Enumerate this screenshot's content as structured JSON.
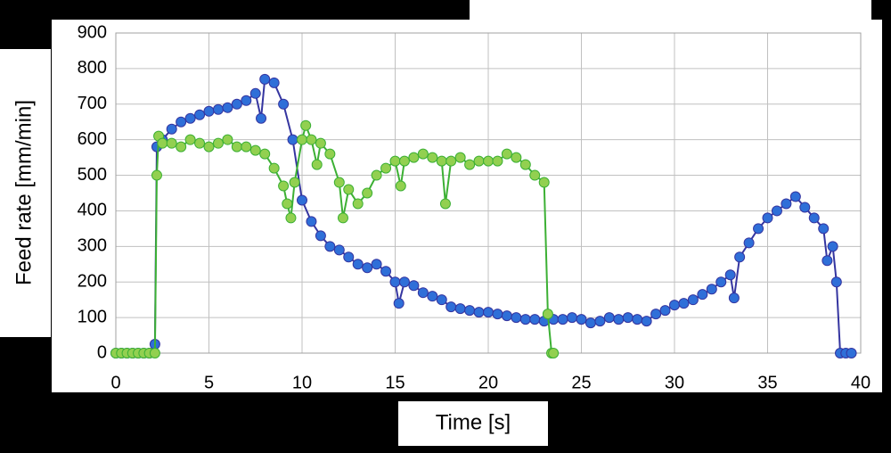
{
  "chart_data": {
    "type": "line",
    "xlabel": "Time [s]",
    "ylabel": "Feed rate [mm/min]",
    "xlim": [
      0,
      40
    ],
    "xticks": [
      0,
      5,
      10,
      15,
      20,
      25,
      30,
      35,
      40
    ],
    "ylim": [
      0,
      900
    ],
    "yticks": [
      0,
      100,
      200,
      300,
      400,
      500,
      600,
      700,
      800,
      900
    ],
    "grid": true,
    "series": [
      {
        "color": "#2f6fd8",
        "line_color": "#3535a0",
        "x": [
          0,
          0.3,
          0.6,
          0.9,
          1.2,
          1.5,
          1.8,
          2.1,
          2.2,
          2.5,
          3,
          3.5,
          4,
          4.5,
          5,
          5.5,
          6,
          6.5,
          7,
          7.5,
          7.8,
          8,
          8.5,
          9,
          9.5,
          10,
          10.5,
          11,
          11.5,
          12,
          12.5,
          13,
          13.5,
          14,
          14.5,
          15,
          15.2,
          15.5,
          16,
          16.5,
          17,
          17.5,
          18,
          18.5,
          19,
          19.5,
          20,
          20.5,
          21,
          21.5,
          22,
          22.5,
          23,
          23.5,
          24,
          24.5,
          25,
          25.5,
          26,
          26.5,
          27,
          27.5,
          28,
          28.5,
          29,
          29.5,
          30,
          30.5,
          31,
          31.5,
          32,
          32.5,
          33,
          33.2,
          33.5,
          34,
          34.5,
          35,
          35.5,
          36,
          36.5,
          37,
          37.5,
          38,
          38.2,
          38.5,
          38.7,
          38.9,
          39.2,
          39.5
        ],
        "values": [
          0,
          0,
          0,
          0,
          0,
          0,
          0,
          25,
          580,
          600,
          630,
          650,
          660,
          670,
          680,
          685,
          690,
          700,
          710,
          730,
          660,
          770,
          760,
          700,
          600,
          430,
          370,
          330,
          300,
          290,
          270,
          250,
          240,
          250,
          230,
          200,
          140,
          200,
          190,
          170,
          160,
          150,
          130,
          125,
          120,
          115,
          115,
          110,
          105,
          100,
          95,
          95,
          90,
          95,
          95,
          100,
          95,
          85,
          90,
          100,
          95,
          100,
          95,
          90,
          110,
          120,
          135,
          140,
          150,
          165,
          180,
          200,
          220,
          155,
          270,
          310,
          350,
          380,
          400,
          420,
          440,
          410,
          380,
          350,
          260,
          300,
          200,
          0,
          0,
          0
        ]
      },
      {
        "color": "#92d050",
        "line_color": "#3cb034",
        "x": [
          0,
          0.3,
          0.6,
          0.9,
          1.2,
          1.5,
          1.8,
          2.1,
          2.2,
          2.3,
          2.5,
          3,
          3.5,
          4,
          4.5,
          5,
          5.5,
          6,
          6.5,
          7,
          7.5,
          8,
          8.5,
          9,
          9.2,
          9.4,
          9.6,
          10,
          10.2,
          10.5,
          10.8,
          11,
          11.5,
          12,
          12.2,
          12.5,
          13,
          13.5,
          14,
          14.5,
          15,
          15.3,
          15.5,
          16,
          16.5,
          17,
          17.5,
          17.7,
          18,
          18.5,
          19,
          19.5,
          20,
          20.5,
          21,
          21.5,
          22,
          22.5,
          23,
          23.2,
          23.4,
          23.5
        ],
        "values": [
          0,
          0,
          0,
          0,
          0,
          0,
          0,
          0,
          500,
          610,
          590,
          590,
          580,
          600,
          590,
          580,
          590,
          600,
          580,
          580,
          570,
          560,
          520,
          470,
          420,
          380,
          480,
          600,
          640,
          600,
          530,
          590,
          560,
          480,
          380,
          460,
          420,
          450,
          500,
          520,
          540,
          470,
          540,
          550,
          560,
          550,
          540,
          420,
          540,
          550,
          530,
          540,
          540,
          540,
          560,
          550,
          530,
          500,
          480,
          110,
          0,
          0
        ]
      }
    ]
  }
}
